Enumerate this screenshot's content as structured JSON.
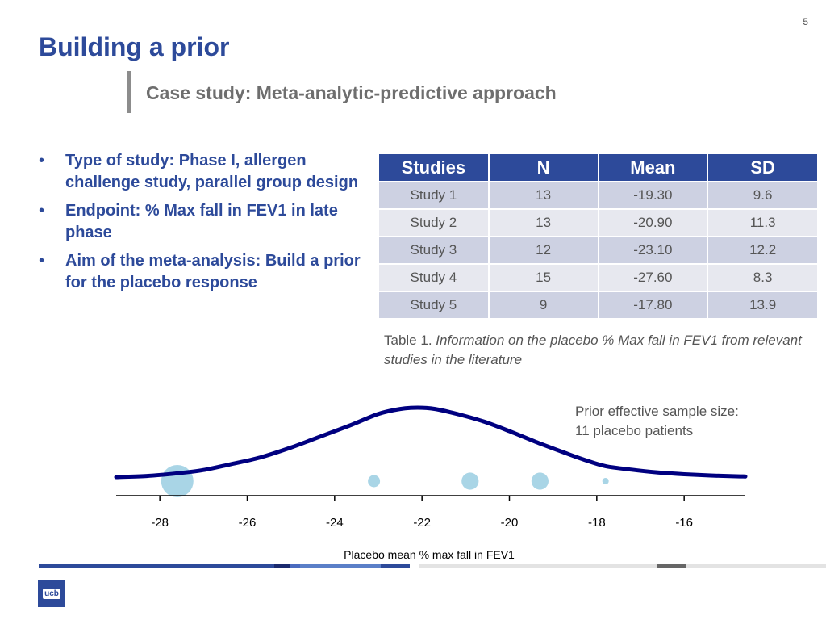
{
  "slide": {
    "page_number": "5",
    "title": "Building a prior",
    "subtitle": "Case study: Meta-analytic-predictive approach"
  },
  "bullets": [
    "Type of study: Phase I, allergen challenge study, parallel group design",
    "Endpoint: % Max fall in FEV1 in late phase",
    "Aim of the meta-analysis: Build a prior for the placebo response"
  ],
  "table": {
    "headers": [
      "Studies",
      "N",
      "Mean",
      "SD"
    ],
    "rows": [
      [
        "Study 1",
        "13",
        "-19.30",
        "9.6"
      ],
      [
        "Study 2",
        "13",
        "-20.90",
        "11.3"
      ],
      [
        "Study 3",
        "12",
        "-23.10",
        "12.2"
      ],
      [
        "Study 4",
        "15",
        "-27.60",
        "8.3"
      ],
      [
        "Study 5",
        "9",
        "-17.80",
        "13.9"
      ]
    ]
  },
  "caption": {
    "prefix": "Table 1. ",
    "text": "Information on the placebo % Max fall in FEV1 from relevant studies in the literature"
  },
  "annotation": {
    "line1": "Prior effective sample size:",
    "line2": "11 placebo patients"
  },
  "chart_data": {
    "type": "line",
    "xlabel": "Placebo mean % max fall in FEV1",
    "xlim": [
      -29,
      -14.6
    ],
    "ticks": [
      -28,
      -26,
      -24,
      -22,
      -20,
      -18,
      -16
    ],
    "tick_labels": [
      "-28",
      "-26",
      "-24",
      "-22",
      "-20",
      "-18",
      "-16"
    ],
    "prior_density": {
      "color": "#000080",
      "x": [
        -29,
        -28.3,
        -27.6,
        -27,
        -26.4,
        -25.7,
        -25,
        -24.3,
        -23.6,
        -23,
        -22.5,
        -22.1,
        -21.7,
        -21.2,
        -20.6,
        -20,
        -19.4,
        -18.8,
        -18.3,
        -17.8,
        -17.2,
        -16.6,
        -16,
        -15.4,
        -14.8,
        -14.6
      ],
      "y": [
        0.005,
        0.012,
        0.028,
        0.048,
        0.082,
        0.125,
        0.185,
        0.255,
        0.325,
        0.39,
        0.42,
        0.428,
        0.42,
        0.39,
        0.345,
        0.285,
        0.22,
        0.16,
        0.112,
        0.072,
        0.05,
        0.033,
        0.022,
        0.015,
        0.01,
        0.009
      ]
    },
    "study_points": {
      "color": "#a9d5e6",
      "points": [
        {
          "x": -27.6,
          "n": 15
        },
        {
          "x": -23.1,
          "n": 12
        },
        {
          "x": -20.9,
          "n": 13
        },
        {
          "x": -19.3,
          "n": 13
        },
        {
          "x": -17.8,
          "n": 9
        }
      ]
    }
  }
}
